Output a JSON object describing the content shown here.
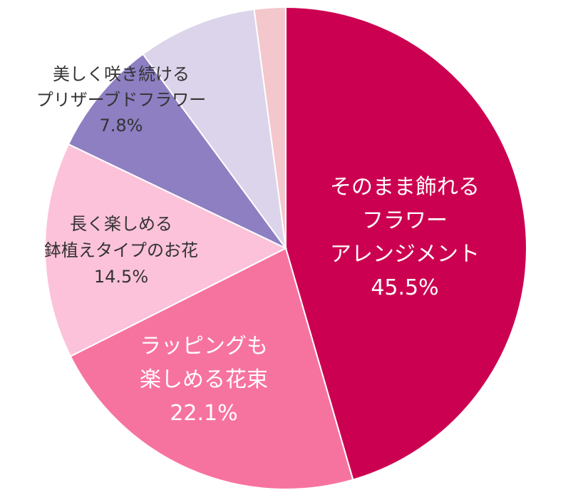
{
  "chart_data": {
    "type": "pie",
    "start": "top",
    "direction": "clockwise",
    "slices": [
      {
        "label_lines": [
          "そのまま飾れる",
          "フラワー",
          "アレンジメント"
        ],
        "value": 45.5,
        "value_label": "45.5%",
        "color": "#cc0050",
        "text_color": "#ffffff"
      },
      {
        "label_lines": [
          "ラッピングも",
          "楽しめる花束"
        ],
        "value": 22.1,
        "value_label": "22.1%",
        "color": "#f7739f",
        "text_color": "#ffffff"
      },
      {
        "label_lines": [
          "長く楽しめる",
          "鉢植えタイプのお花"
        ],
        "value": 14.5,
        "value_label": "14.5%",
        "color": "#fcc2d9",
        "text_color": "#333333"
      },
      {
        "label_lines": [
          "美しく咲き続ける",
          "プリザーブドフラワー"
        ],
        "value": 7.8,
        "value_label": "7.8%",
        "color": "#8d7fc2",
        "text_color": "#333333"
      },
      {
        "label_lines": [],
        "value": 8.0,
        "value_label": "",
        "color": "#dcd4ea",
        "text_color": "#333333"
      },
      {
        "label_lines": [],
        "value": 2.1,
        "value_label": "",
        "color": "#f3c7cb",
        "text_color": "#333333"
      }
    ]
  }
}
